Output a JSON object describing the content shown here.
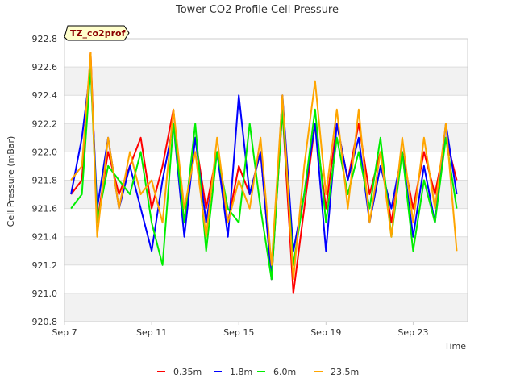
{
  "chart_data": {
    "type": "line",
    "title": "Tower CO2 Profile Cell Pressure",
    "badge": "TZ_co2prof",
    "xlabel": "Time",
    "ylabel": "Cell Pressure (mBar)",
    "xlim": [
      7.0,
      25.5
    ],
    "ylim": [
      920.8,
      922.8
    ],
    "x_unit": "day of September",
    "x_ticks": [
      {
        "value": 7,
        "label": "Sep 7"
      },
      {
        "value": 11,
        "label": "Sep 11"
      },
      {
        "value": 15,
        "label": "Sep 15"
      },
      {
        "value": 19,
        "label": "Sep 19"
      },
      {
        "value": 23,
        "label": "Sep 23"
      }
    ],
    "y_ticks": [
      920.8,
      921.0,
      921.2,
      921.4,
      921.6,
      921.8,
      922.0,
      922.2,
      922.4,
      922.6,
      922.8
    ],
    "grid": true,
    "legend_position": "bottom",
    "series": [
      {
        "name": "0.35m",
        "color": "#ff0000",
        "x": [
          7.3,
          7.8,
          8.2,
          8.5,
          9.0,
          9.5,
          10.0,
          10.5,
          11.0,
          11.5,
          12.0,
          12.5,
          13.0,
          13.5,
          14.0,
          14.5,
          15.0,
          15.5,
          16.0,
          16.5,
          17.0,
          17.5,
          18.0,
          18.5,
          19.0,
          19.5,
          20.0,
          20.5,
          21.0,
          21.5,
          22.0,
          22.5,
          23.0,
          23.5,
          24.0,
          24.5,
          25.0
        ],
        "y": [
          921.7,
          921.8,
          922.7,
          921.5,
          922.0,
          921.7,
          921.9,
          922.1,
          921.6,
          921.9,
          922.3,
          921.5,
          922.1,
          921.6,
          922.0,
          921.5,
          921.9,
          921.7,
          922.0,
          921.1,
          922.3,
          921.0,
          921.6,
          922.2,
          921.6,
          922.2,
          921.8,
          922.2,
          921.7,
          922.0,
          921.5,
          922.0,
          921.6,
          922.0,
          921.7,
          922.1,
          921.8
        ]
      },
      {
        "name": "1.8m",
        "color": "#0000ff",
        "x": [
          7.3,
          7.8,
          8.2,
          8.5,
          9.0,
          9.5,
          10.0,
          10.5,
          11.0,
          11.5,
          12.0,
          12.5,
          13.0,
          13.5,
          14.0,
          14.5,
          15.0,
          15.5,
          16.0,
          16.5,
          17.0,
          17.5,
          18.0,
          18.5,
          19.0,
          19.5,
          20.0,
          20.5,
          21.0,
          21.5,
          22.0,
          22.5,
          23.0,
          23.5,
          24.0,
          24.5,
          25.0
        ],
        "y": [
          921.7,
          922.1,
          922.6,
          921.6,
          922.1,
          921.6,
          921.9,
          921.6,
          921.3,
          921.8,
          922.2,
          921.4,
          922.1,
          921.5,
          922.0,
          921.4,
          922.4,
          921.7,
          922.0,
          921.1,
          922.4,
          921.3,
          921.7,
          922.2,
          921.3,
          922.2,
          921.8,
          922.1,
          921.5,
          921.9,
          921.6,
          922.0,
          921.4,
          921.9,
          921.5,
          922.2,
          921.7
        ]
      },
      {
        "name": "6.0m",
        "color": "#00ee00",
        "x": [
          7.3,
          7.8,
          8.2,
          8.5,
          9.0,
          9.5,
          10.0,
          10.5,
          11.0,
          11.5,
          12.0,
          12.5,
          13.0,
          13.5,
          14.0,
          14.5,
          15.0,
          15.5,
          16.0,
          16.5,
          17.0,
          17.5,
          18.0,
          18.5,
          19.0,
          19.5,
          20.0,
          20.5,
          21.0,
          21.5,
          22.0,
          22.5,
          23.0,
          23.5,
          24.0,
          24.5,
          25.0
        ],
        "y": [
          921.6,
          921.7,
          922.6,
          921.5,
          921.9,
          921.8,
          921.7,
          922.0,
          921.5,
          921.2,
          922.2,
          921.5,
          922.2,
          921.3,
          922.0,
          921.6,
          921.5,
          922.2,
          921.6,
          921.1,
          922.3,
          921.2,
          921.7,
          922.3,
          921.5,
          922.1,
          921.7,
          922.0,
          921.6,
          922.1,
          921.4,
          922.0,
          921.3,
          921.8,
          921.5,
          922.1,
          921.6
        ]
      },
      {
        "name": "23.5m",
        "color": "#ffa500",
        "x": [
          7.3,
          7.8,
          8.2,
          8.5,
          9.0,
          9.5,
          10.0,
          10.5,
          11.0,
          11.5,
          12.0,
          12.5,
          13.0,
          13.5,
          14.0,
          14.5,
          15.0,
          15.5,
          16.0,
          16.5,
          17.0,
          17.5,
          18.0,
          18.5,
          19.0,
          19.5,
          20.0,
          20.5,
          21.0,
          21.5,
          22.0,
          22.5,
          23.0,
          23.5,
          24.0,
          24.5,
          25.0
        ],
        "y": [
          921.8,
          921.9,
          922.7,
          921.4,
          922.1,
          921.6,
          922.0,
          921.7,
          921.8,
          921.5,
          922.3,
          921.6,
          922.0,
          921.4,
          922.1,
          921.5,
          921.8,
          921.6,
          922.1,
          921.2,
          922.4,
          921.1,
          921.9,
          922.5,
          921.7,
          922.3,
          921.6,
          922.3,
          921.5,
          922.0,
          921.4,
          922.1,
          921.5,
          922.1,
          921.6,
          922.2,
          921.3
        ]
      }
    ]
  }
}
